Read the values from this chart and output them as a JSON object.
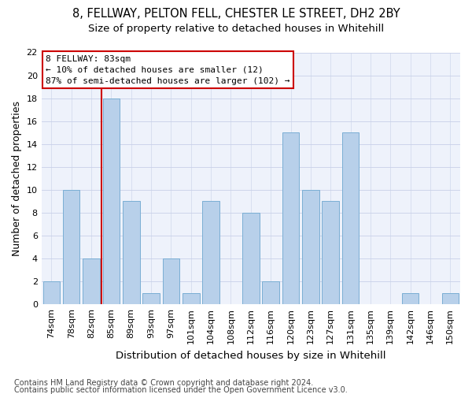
{
  "title1": "8, FELLWAY, PELTON FELL, CHESTER LE STREET, DH2 2BY",
  "title2": "Size of property relative to detached houses in Whitehill",
  "xlabel": "Distribution of detached houses by size in Whitehill",
  "ylabel": "Number of detached properties",
  "categories": [
    "74sqm",
    "78sqm",
    "82sqm",
    "85sqm",
    "89sqm",
    "93sqm",
    "97sqm",
    "101sqm",
    "104sqm",
    "108sqm",
    "112sqm",
    "116sqm",
    "120sqm",
    "123sqm",
    "127sqm",
    "131sqm",
    "135sqm",
    "139sqm",
    "142sqm",
    "146sqm",
    "150sqm"
  ],
  "values": [
    2,
    10,
    4,
    18,
    9,
    1,
    4,
    1,
    9,
    0,
    8,
    2,
    15,
    10,
    9,
    15,
    0,
    0,
    1,
    0,
    1
  ],
  "bar_color": "#b8d0ea",
  "bar_edge_color": "#7aaed4",
  "highlight_x": "82sqm",
  "highlight_color": "#cc0000",
  "annotation_text": "8 FELLWAY: 83sqm\n← 10% of detached houses are smaller (12)\n87% of semi-detached houses are larger (102) →",
  "annotation_box_color": "#ffffff",
  "annotation_box_edge_color": "#cc0000",
  "ylim": [
    0,
    22
  ],
  "yticks": [
    0,
    2,
    4,
    6,
    8,
    10,
    12,
    14,
    16,
    18,
    20,
    22
  ],
  "footer1": "Contains HM Land Registry data © Crown copyright and database right 2024.",
  "footer2": "Contains public sector information licensed under the Open Government Licence v3.0.",
  "bg_color": "#eef2fb",
  "grid_color": "#c8d0e8",
  "title1_fontsize": 10.5,
  "title2_fontsize": 9.5,
  "axis_label_fontsize": 9,
  "tick_fontsize": 8,
  "annotation_fontsize": 8,
  "footer_fontsize": 7
}
